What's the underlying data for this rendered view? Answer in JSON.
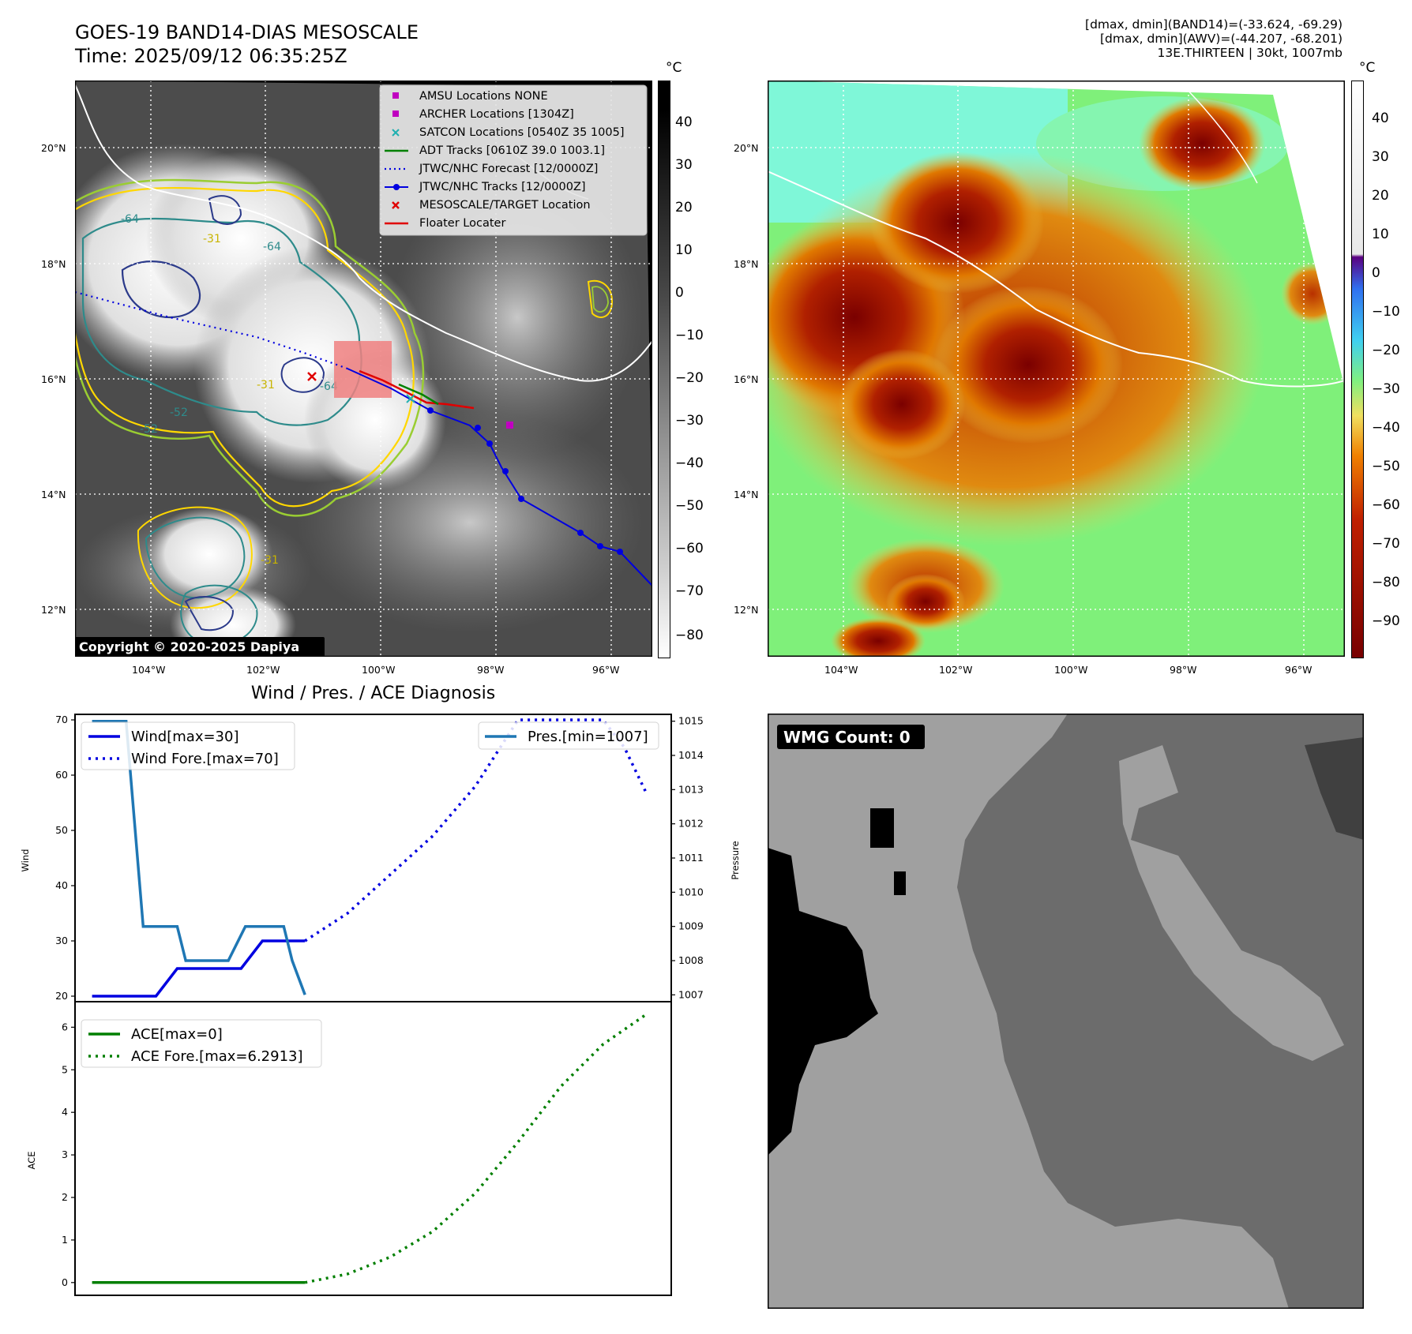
{
  "header": {
    "title": "GOES-19 BAND14-DIAS MESOSCALE",
    "time": "Time: 2025/09/12 06:35:25Z",
    "info": [
      "[dmax, dmin](BAND14)=(-33.624, -69.29)",
      "[dmax, dmin](AWV)=(-44.207, -68.201)",
      "13E.THIRTEEN | 30kt, 1007mb"
    ]
  },
  "map": {
    "lat_labels": [
      "20°N",
      "18°N",
      "16°N",
      "14°N",
      "12°N"
    ],
    "lon_labels": [
      "104°W",
      "102°W",
      "100°W",
      "98°W",
      "96°W"
    ],
    "copyright": "Copyright © 2020-2025 Dapiya",
    "legend": [
      {
        "label": "AMSU Locations NONE",
        "marker": "square",
        "color": "#c000c0"
      },
      {
        "label": "ARCHER Locations [1304Z]",
        "marker": "square",
        "color": "#c000c0"
      },
      {
        "label": "SATCON Locations [0540Z 35 1005]",
        "marker": "x",
        "color": "#20b0b0"
      },
      {
        "label": "ADT Tracks [0610Z 39.0 1003.1]",
        "marker": "line",
        "color": "#008000"
      },
      {
        "label": "JTWC/NHC Forecast [12/0000Z]",
        "marker": "dotted",
        "color": "#0000e0"
      },
      {
        "label": "JTWC/NHC Tracks [12/0000Z]",
        "marker": "line-dot",
        "color": "#0000e0"
      },
      {
        "label": "MESOSCALE/TARGET Location",
        "marker": "x",
        "color": "#e00000"
      },
      {
        "label": "Floater Locater",
        "marker": "line",
        "color": "#e00000"
      }
    ],
    "contour_labels": [
      "-64",
      "-64",
      "-31",
      "-64",
      "-31",
      "-52",
      "-52",
      "-31"
    ]
  },
  "colorbar_left": {
    "unit": "°C",
    "ticks": [
      "40",
      "30",
      "20",
      "10",
      "0",
      "−10",
      "−20",
      "−30",
      "−40",
      "−50",
      "−60",
      "−70",
      "−80"
    ]
  },
  "colorbar_right": {
    "unit": "°C",
    "ticks": [
      "40",
      "30",
      "20",
      "10",
      "0",
      "−10",
      "−20",
      "−30",
      "−40",
      "−50",
      "−60",
      "−70",
      "−80",
      "−90"
    ]
  },
  "diagnosis": {
    "title": "Wind / Pres. / ACE Diagnosis"
  },
  "wmg": {
    "label": "WMG Count: 0"
  },
  "chart_data": [
    {
      "type": "line",
      "title": "Wind / Pres. / ACE Diagnosis",
      "ylabel": "Wind",
      "ylabel_right": "Pressure",
      "ylim": [
        19,
        71
      ],
      "ylim_right": [
        1006.8,
        1015.2
      ],
      "yticks": [
        20,
        30,
        40,
        50,
        60,
        70
      ],
      "yticks_right": [
        1007,
        1008,
        1009,
        1010,
        1011,
        1012,
        1013,
        1014,
        1015
      ],
      "xlim": [
        -0.2,
        6.8
      ],
      "series": [
        {
          "name": "Wind[max=30]",
          "axis": "left",
          "color": "#0000e0",
          "style": "solid",
          "x": [
            0,
            0.25,
            0.5,
            0.75,
            1.0,
            1.25,
            1.5,
            1.75,
            2.0,
            2.25,
            2.5
          ],
          "values": [
            20,
            20,
            20,
            20,
            25,
            25,
            25,
            25,
            30,
            30,
            30
          ]
        },
        {
          "name": "Wind Fore.[max=70]",
          "axis": "left",
          "color": "#0000e0",
          "style": "dotted",
          "x": [
            2.5,
            3.0,
            3.5,
            4.0,
            4.5,
            5.0,
            5.5,
            6.0,
            6.25,
            6.5
          ],
          "values": [
            30,
            35,
            42,
            49,
            58,
            70,
            70,
            70,
            65,
            57
          ]
        },
        {
          "name": "Pres.[min=1007]",
          "axis": "right",
          "color": "#1f77b4",
          "style": "solid",
          "x": [
            0,
            0.4,
            0.6,
            1.0,
            1.1,
            1.3,
            1.6,
            1.8,
            2.0,
            2.25,
            2.35,
            2.5
          ],
          "values": [
            1015,
            1015,
            1009,
            1009,
            1008,
            1008,
            1008,
            1009,
            1009,
            1009,
            1008,
            1007
          ]
        }
      ]
    },
    {
      "type": "line",
      "ylabel": "ACE",
      "ylim": [
        -0.3,
        6.6
      ],
      "yticks": [
        0,
        1,
        2,
        3,
        4,
        5,
        6
      ],
      "xlim": [
        -0.2,
        6.8
      ],
      "series": [
        {
          "name": "ACE[max=0]",
          "color": "#007f00",
          "style": "solid",
          "x": [
            0,
            2.5
          ],
          "values": [
            0,
            0
          ]
        },
        {
          "name": "ACE Fore.[max=6.2913]",
          "color": "#007f00",
          "style": "dotted",
          "x": [
            2.5,
            3.0,
            3.5,
            4.0,
            4.5,
            5.0,
            5.5,
            6.0,
            6.5
          ],
          "values": [
            0,
            0.2,
            0.6,
            1.2,
            2.1,
            3.3,
            4.6,
            5.6,
            6.2913
          ]
        }
      ]
    }
  ]
}
